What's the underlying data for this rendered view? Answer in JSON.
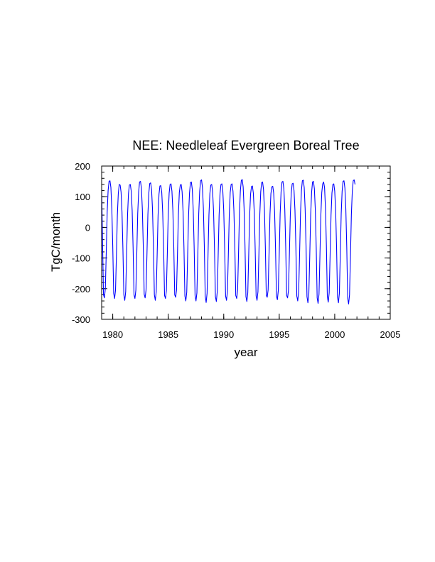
{
  "chart_data": {
    "type": "line",
    "title": "NEE: Needleleaf Evergreen Boreal Tree",
    "xlabel": "year",
    "ylabel": "TgC/month",
    "xlim": [
      1979,
      2005
    ],
    "ylim": [
      -300,
      200
    ],
    "x_ticks": [
      1980,
      1985,
      1990,
      1995,
      2000,
      2005
    ],
    "y_ticks": [
      200,
      100,
      0,
      -100,
      -200,
      -300
    ],
    "x_tick_labels": [
      "1980",
      "1985",
      "1990",
      "1995",
      "2000",
      "2005"
    ],
    "y_tick_labels": [
      "200",
      "100",
      "0",
      "-100",
      "-200",
      "-300"
    ],
    "grid": false,
    "legend": "none",
    "line_color": "#0000ff",
    "series": [
      {
        "x_start": 1979.0,
        "x_step": 0.0833333,
        "values": [
          125,
          -50,
          -220,
          -230,
          -200,
          -80,
          50,
          120,
          150,
          152,
          130,
          60,
          -60,
          -215,
          -232,
          -205,
          -90,
          40,
          110,
          140,
          138,
          115,
          50,
          -70,
          -220,
          -238,
          -210,
          -90,
          40,
          110,
          138,
          140,
          118,
          55,
          -65,
          -220,
          -232,
          -205,
          -85,
          45,
          115,
          148,
          150,
          128,
          60,
          -60,
          -218,
          -230,
          -205,
          -88,
          42,
          112,
          143,
          145,
          122,
          58,
          -62,
          -220,
          -238,
          -210,
          -92,
          38,
          108,
          135,
          136,
          114,
          50,
          -68,
          -222,
          -232,
          -206,
          -86,
          42,
          112,
          140,
          142,
          118,
          55,
          -65,
          -220,
          -228,
          -204,
          -84,
          44,
          114,
          138,
          140,
          116,
          54,
          -66,
          -224,
          -240,
          -212,
          -90,
          40,
          112,
          146,
          148,
          124,
          58,
          -62,
          -222,
          -240,
          -214,
          -88,
          46,
          118,
          152,
          155,
          130,
          62,
          -60,
          -224,
          -245,
          -215,
          -92,
          40,
          110,
          138,
          140,
          116,
          52,
          -68,
          -226,
          -242,
          -210,
          -90,
          40,
          110,
          140,
          142,
          118,
          54,
          -66,
          -224,
          -238,
          -208,
          -88,
          42,
          114,
          140,
          142,
          118,
          54,
          -66,
          -222,
          -232,
          -206,
          -86,
          46,
          120,
          153,
          156,
          132,
          62,
          -62,
          -226,
          -242,
          -214,
          -92,
          38,
          108,
          133,
          135,
          112,
          50,
          -70,
          -224,
          -238,
          -210,
          -90,
          42,
          116,
          146,
          148,
          124,
          58,
          -64,
          -222,
          -228,
          -204,
          -84,
          42,
          110,
          132,
          134,
          112,
          50,
          -68,
          -224,
          -236,
          -206,
          -88,
          44,
          116,
          148,
          150,
          126,
          60,
          -62,
          -222,
          -230,
          -206,
          -86,
          42,
          112,
          142,
          144,
          120,
          56,
          -64,
          -224,
          -240,
          -210,
          -90,
          44,
          120,
          152,
          154,
          130,
          62,
          -62,
          -226,
          -246,
          -216,
          -94,
          40,
          114,
          148,
          150,
          126,
          58,
          -66,
          -230,
          -248,
          -218,
          -94,
          40,
          114,
          142,
          148,
          130,
          62,
          -60,
          -226,
          -244,
          -214,
          -92,
          40,
          112,
          140,
          142,
          118,
          54,
          -66,
          -228,
          -246,
          -216,
          -94,
          44,
          118,
          150,
          152,
          128,
          60,
          -64,
          -230,
          -250,
          -220,
          -96,
          42,
          118,
          152,
          155,
          140
        ]
      }
    ]
  }
}
